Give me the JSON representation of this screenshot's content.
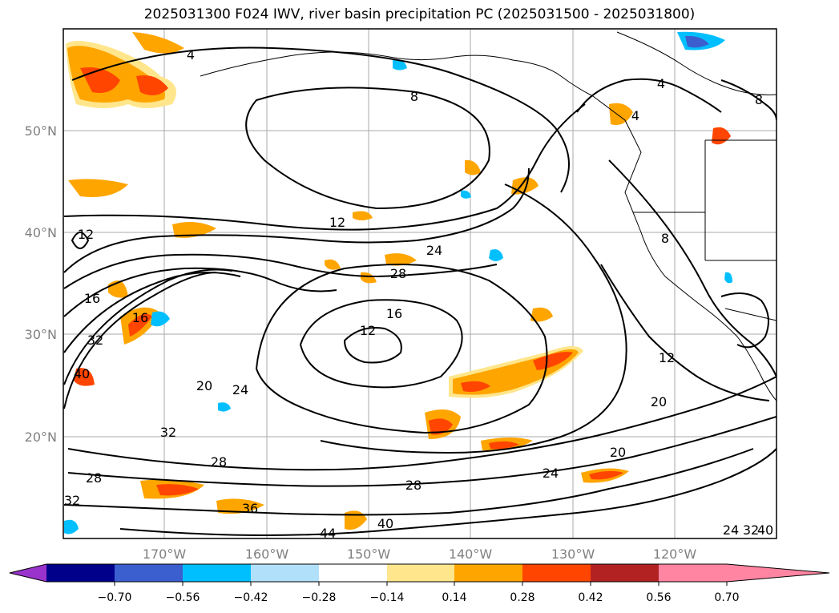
{
  "title": "2025031300 F024 IWV, river basin precipitation PC (2025031500 - 2025031800)",
  "map": {
    "lon_ticks": [
      "170°W",
      "160°W",
      "150°W",
      "140°W",
      "130°W",
      "120°W"
    ],
    "lat_ticks": [
      "50°N",
      "40°N",
      "30°N",
      "20°N"
    ],
    "contour_labels": [
      "4",
      "8",
      "4",
      "8",
      "4",
      "8",
      "12",
      "12",
      "16",
      "24",
      "28",
      "16",
      "12",
      "32",
      "16",
      "40",
      "20",
      "24",
      "32",
      "28",
      "28",
      "32",
      "36",
      "44",
      "40",
      "28",
      "24",
      "20",
      "20",
      "12",
      "24",
      "32",
      "40"
    ]
  },
  "colorbar": {
    "ticks": [
      "−0.70",
      "−0.56",
      "−0.42",
      "−0.28",
      "−0.14",
      "0.14",
      "0.28",
      "0.42",
      "0.56",
      "0.70"
    ],
    "colors": [
      "#9a33cc",
      "#00008b",
      "#3c5fcf",
      "#00bfff",
      "#b0e0fa",
      "#ffffff",
      "#ffe68c",
      "#ffa500",
      "#ff4500",
      "#b22222",
      "#ff85a2"
    ]
  }
}
